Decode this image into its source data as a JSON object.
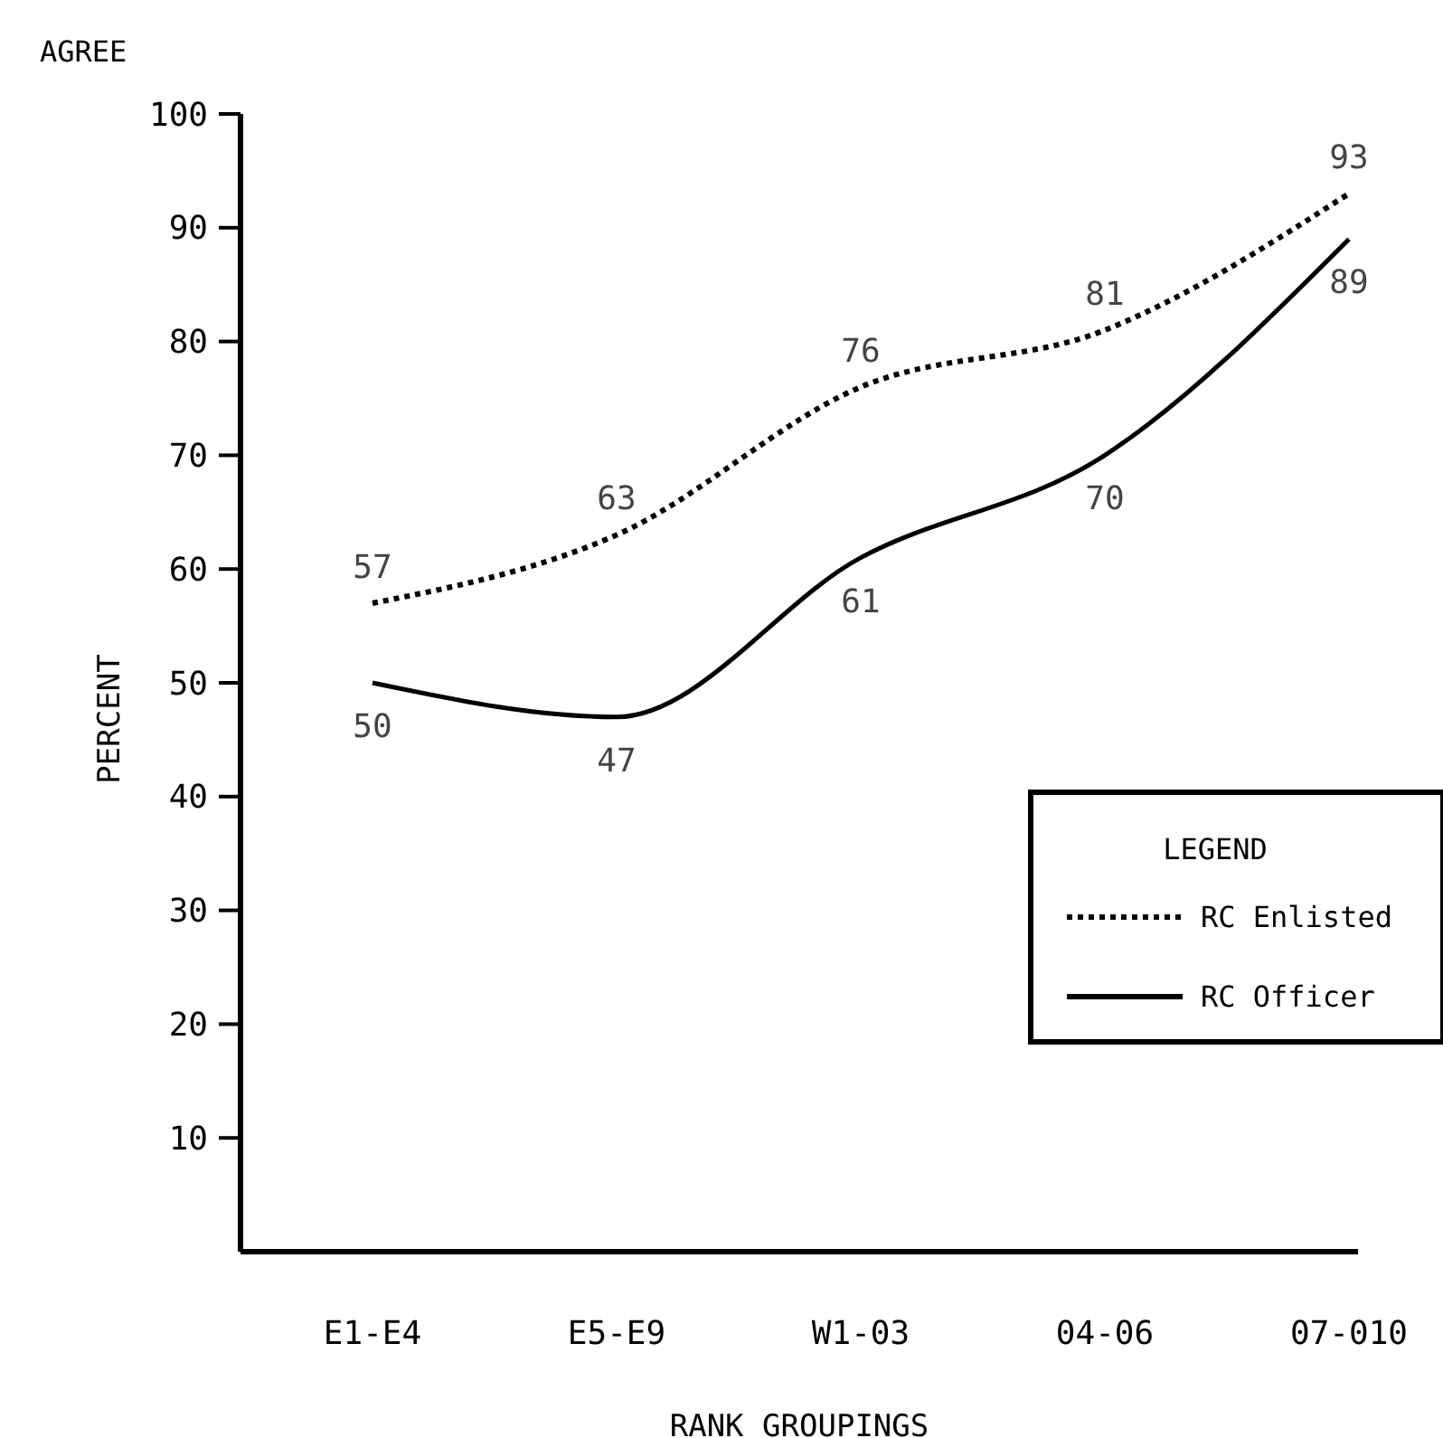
{
  "chart_data": {
    "type": "line",
    "xlabel": "RANK GROUPINGS",
    "ylabel": "PERCENT",
    "annotations": [
      "AGREE"
    ],
    "categories": [
      "E1-E4",
      "E5-E9",
      "W1-03",
      "04-06",
      "07-010"
    ],
    "series": [
      {
        "name": "RC Enlisted",
        "color": "#000000",
        "line_style": "dotted",
        "values": [
          57,
          63,
          76,
          81,
          93
        ]
      },
      {
        "name": "RC Officer",
        "color": "#000000",
        "line_style": "solid",
        "values": [
          50,
          47,
          61,
          70,
          89
        ]
      }
    ],
    "ylim": [
      0,
      100
    ],
    "yticks": [
      10,
      20,
      30,
      40,
      50,
      60,
      70,
      80,
      90,
      100
    ],
    "data_labels": true,
    "legend": "right",
    "legend_title": "LEGEND",
    "grid": false,
    "marker": "none"
  }
}
